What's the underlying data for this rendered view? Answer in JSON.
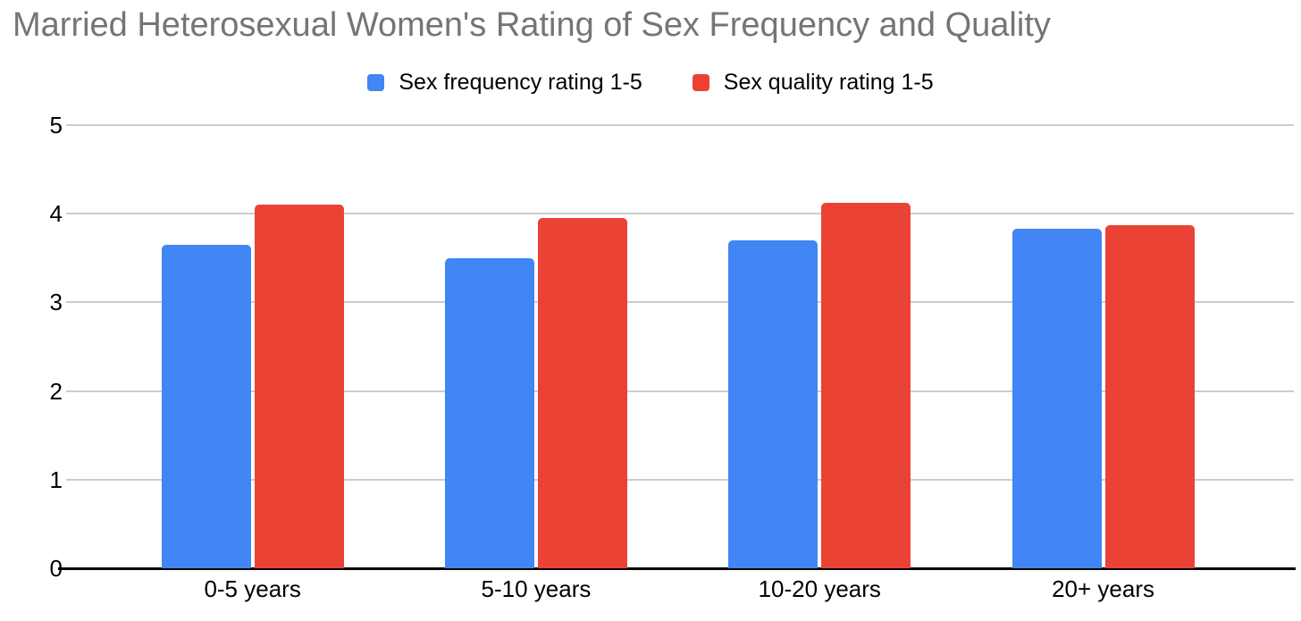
{
  "chart_data": {
    "type": "bar",
    "title": "Married Heterosexual Women's Rating of Sex Frequency and Quality",
    "categories": [
      "0-5 years",
      "5-10 years",
      "10-20 years",
      "20+ years"
    ],
    "series": [
      {
        "name": "Sex frequency rating 1-5",
        "color": "#4285F4",
        "values": [
          3.65,
          3.5,
          3.7,
          3.83
        ]
      },
      {
        "name": "Sex quality rating 1-5",
        "color": "#EA4335",
        "values": [
          4.1,
          3.95,
          4.12,
          3.87
        ]
      }
    ],
    "xlabel": "",
    "ylabel": "",
    "ylim": [
      0,
      5
    ],
    "yticks": [
      0,
      1,
      2,
      3,
      4,
      5
    ],
    "grid": true,
    "legend_position": "top",
    "title_color": "#757575",
    "gridline_color": "#cccccc",
    "axis_line_color": "#000000",
    "axis_text_color": "#000000",
    "background_color": "#ffffff"
  },
  "legend": [
    {
      "label": "Sex frequency rating 1-5",
      "color": "#4285F4"
    },
    {
      "label": "Sex quality rating 1-5",
      "color": "#EA4335"
    }
  ]
}
